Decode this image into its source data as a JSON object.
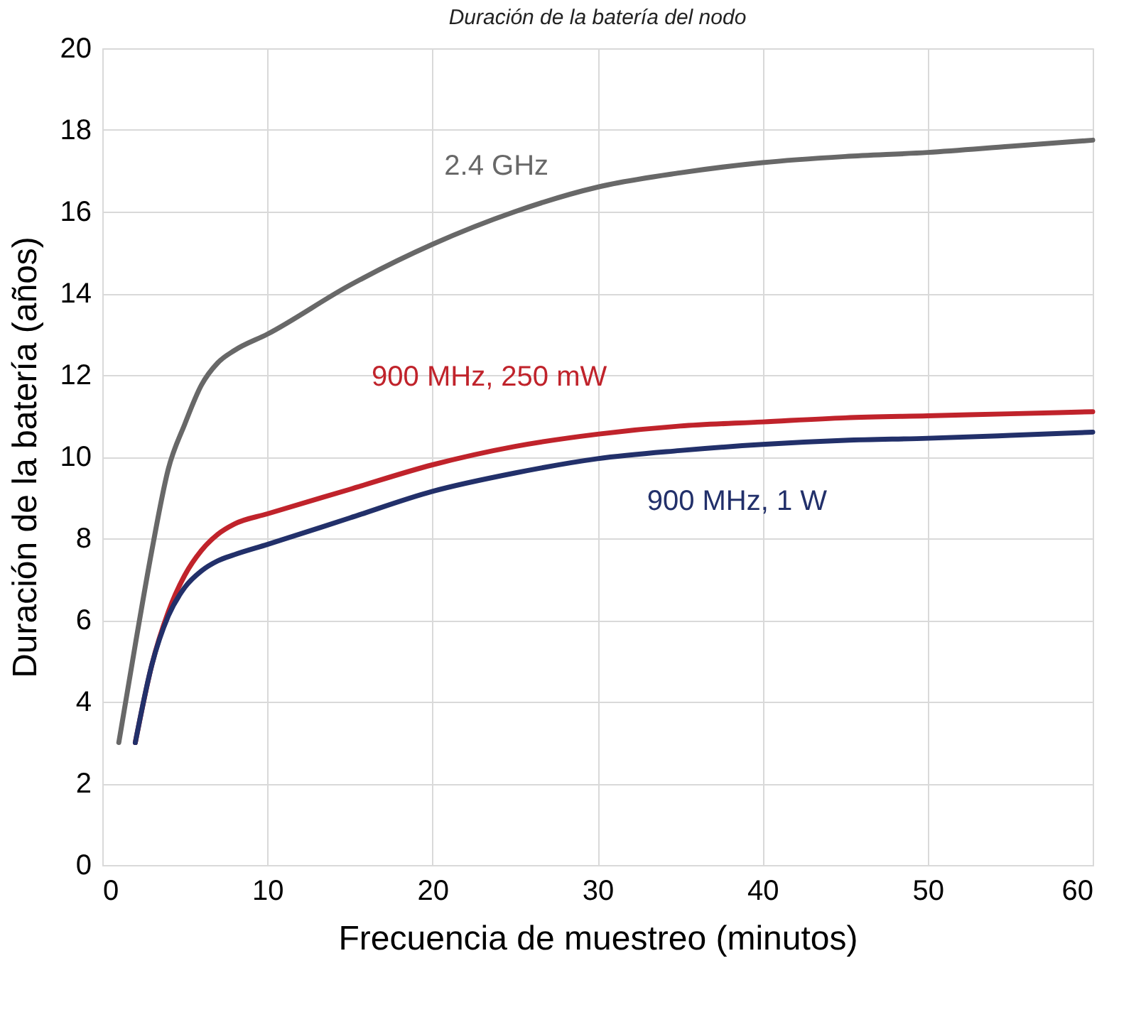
{
  "chart_data": {
    "type": "line",
    "title": "Duración de la batería del nodo",
    "xlabel": "Frecuencia de muestreo (minutos)",
    "ylabel": "Duración de la batería (años)",
    "xlim": [
      0,
      60
    ],
    "xticks": [
      0,
      10,
      20,
      30,
      40,
      50,
      60
    ],
    "ylim": [
      0,
      20
    ],
    "yticks": [
      0,
      2,
      4,
      6,
      8,
      10,
      12,
      14,
      16,
      18,
      20
    ],
    "grid": true,
    "legend": false,
    "marker": "none",
    "line_style": "solid",
    "series": [
      {
        "name": "2.4 GHz",
        "color": "#686868",
        "x": [
          1,
          2,
          3,
          4,
          5,
          6,
          7,
          8,
          10,
          15,
          20,
          25,
          30,
          35,
          40,
          45,
          50,
          55,
          60
        ],
        "values": [
          3.0,
          5.4,
          7.7,
          9.7,
          10.8,
          11.75,
          12.3,
          12.6,
          13.0,
          14.2,
          15.2,
          16.0,
          16.6,
          16.95,
          17.2,
          17.35,
          17.45,
          17.6,
          17.75
        ]
      },
      {
        "name": "900 MHz, 250 mW",
        "color": "#c0232b",
        "x": [
          2,
          3,
          4,
          5,
          6,
          7,
          8,
          10,
          15,
          20,
          25,
          30,
          35,
          40,
          45,
          50,
          55,
          60
        ],
        "values": [
          3.0,
          4.9,
          6.2,
          7.1,
          7.7,
          8.1,
          8.35,
          8.6,
          9.2,
          9.8,
          10.25,
          10.55,
          10.75,
          10.85,
          10.95,
          11.0,
          11.05,
          11.1
        ]
      },
      {
        "name": "900 MHz, 1 W",
        "color": "#22306a",
        "x": [
          2,
          3,
          4,
          5,
          6,
          7,
          8,
          10,
          15,
          20,
          25,
          30,
          35,
          40,
          45,
          50,
          55,
          60
        ],
        "values": [
          3.0,
          4.9,
          6.1,
          6.8,
          7.2,
          7.45,
          7.6,
          7.85,
          8.5,
          9.15,
          9.6,
          9.95,
          10.15,
          10.3,
          10.4,
          10.45,
          10.52,
          10.6
        ]
      }
    ]
  }
}
